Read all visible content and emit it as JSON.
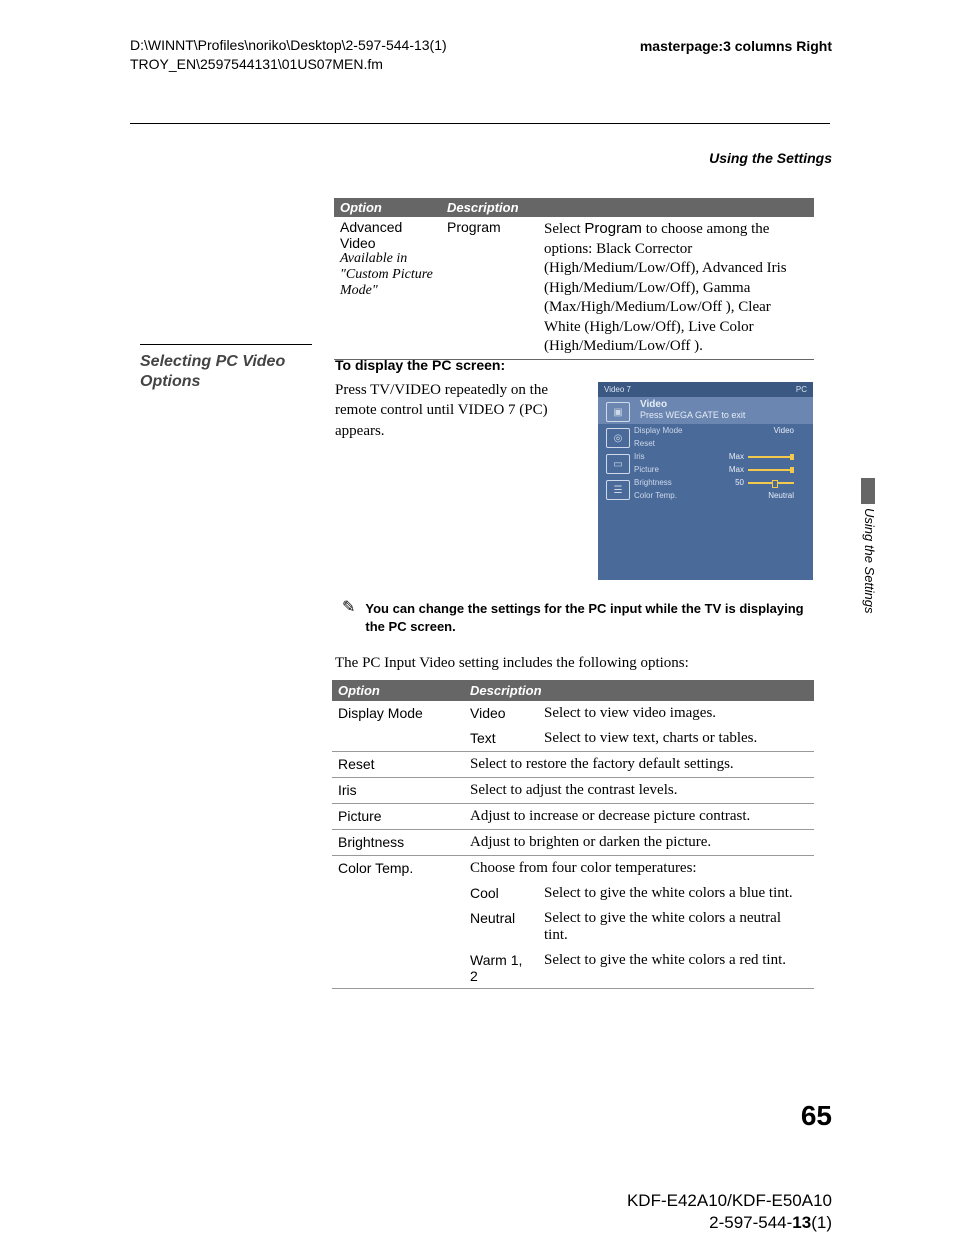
{
  "header": {
    "path_line1": "D:\\WINNT\\Profiles\\noriko\\Desktop\\2-597-544-13(1)",
    "path_line2": "TROY_EN\\2597544131\\01US07MEN.fm",
    "masterpage": "masterpage:3 columns Right"
  },
  "section_title": "Using the Settings",
  "table1": {
    "head_option": "Option",
    "head_description": "Description",
    "opt_main": "Advanced Video",
    "opt_sub": "Available in \"Custom Picture Mode\"",
    "sub": "Program",
    "desc_prefix": "Select ",
    "desc_bold": "Program",
    "desc_rest": " to choose among the options: Black Corrector (High/Medium/Low/Off), Advanced Iris (High/Medium/Low/Off), Gamma (Max/High/Medium/Low/Off ), Clear White (High/Low/Off), Live Color (High/Medium/Low/Off )."
  },
  "section_heading": "Selecting PC Video Options",
  "pc": {
    "head": "To display the PC screen:",
    "body": "Press TV/VIDEO repeatedly on the remote control until VIDEO 7 (PC) appears."
  },
  "osd": {
    "top_left": "Video 7",
    "top_right": "PC",
    "title": "Video",
    "subtitle": "Press WEGA GATE to exit",
    "rows": [
      {
        "k": "Display Mode",
        "v": "Video",
        "slider": false
      },
      {
        "k": "Reset",
        "v": "",
        "slider": false
      },
      {
        "k": "Iris",
        "v": "Max",
        "slider": true
      },
      {
        "k": "Picture",
        "v": "Max",
        "slider": true
      },
      {
        "k": "Brightness",
        "v": "50",
        "slider": true,
        "mid": true
      },
      {
        "k": "Color Temp.",
        "v": "Neutral",
        "slider": false
      }
    ]
  },
  "sidetab": "Using the Settings",
  "note": {
    "icon": "✎",
    "text": "You can change the settings for the PC input while the TV is displaying the PC screen."
  },
  "lead": "The PC Input Video setting includes the following options:",
  "table2": {
    "head_option": "Option",
    "head_description": "Description",
    "rows": [
      {
        "c1": "Display Mode",
        "c2": "Video",
        "c3": "Select to view video images.",
        "cont": true
      },
      {
        "c1": "",
        "c2": "Text",
        "c3": "Select to view text, charts or tables."
      },
      {
        "c1": "Reset",
        "c2": "",
        "c3": "Select to restore the factory default settings.",
        "span": true
      },
      {
        "c1": "Iris",
        "c2": "",
        "c3": "Select to adjust the contrast levels.",
        "span": true
      },
      {
        "c1": "Picture",
        "c2": "",
        "c3": "Adjust to increase or decrease picture contrast.",
        "span": true
      },
      {
        "c1": "Brightness",
        "c2": "",
        "c3": "Adjust to brighten or darken the picture.",
        "span": true
      },
      {
        "c1": "Color Temp.",
        "c2": "",
        "c3": "Choose from four color temperatures:",
        "span": true,
        "cont": true
      },
      {
        "c1": "",
        "c2": "Cool",
        "c3": "Select to give the white colors a blue tint.",
        "cont": true
      },
      {
        "c1": "",
        "c2": "Neutral",
        "c3": "Select to give the white colors a neutral tint.",
        "cont": true
      },
      {
        "c1": "",
        "c2": "Warm 1, 2",
        "c3": "Select to give the white colors a red tint."
      }
    ]
  },
  "pagenum": "65",
  "footer": {
    "model": "KDF-E42A10/KDF-E50A10",
    "doc_pre": "2-597-544-",
    "doc_bold": "13",
    "doc_post": "(1)"
  },
  "colors": {
    "table_header_bg": "#666666",
    "osd_bg": "#4a6a9a",
    "osd_accent": "#f2c94c"
  }
}
